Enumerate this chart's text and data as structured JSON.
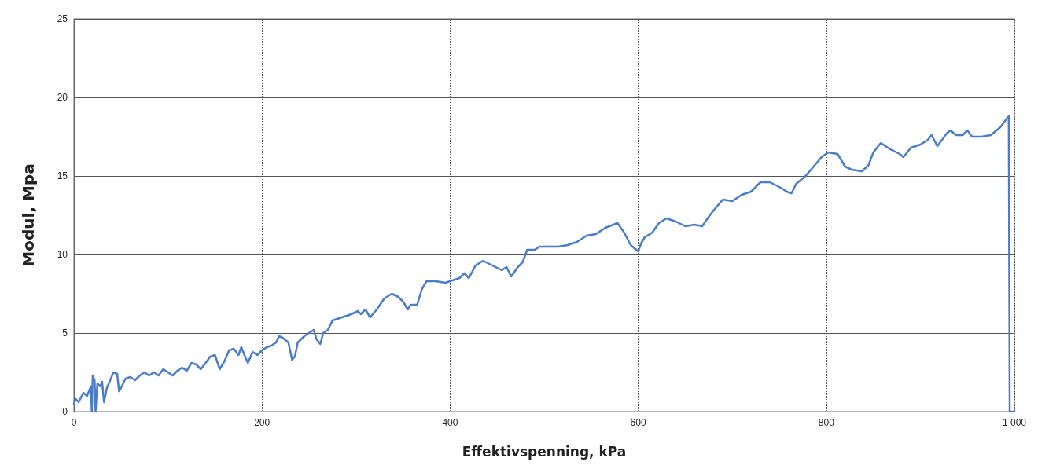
{
  "chart_data": {
    "type": "line",
    "xlabel": "Effektivspenning, kPa",
    "ylabel": "Modul, Mpa",
    "xlim": [
      0,
      1000
    ],
    "xticks": [
      0,
      200,
      400,
      600,
      800,
      {
        "value": 1000,
        "label": "1 000"
      }
    ],
    "ylim": [
      0,
      25
    ],
    "yticks": [
      0,
      5,
      10,
      15,
      20,
      25
    ],
    "grid": true,
    "marker": "none",
    "line_style": "solid",
    "series": [
      {
        "color": "#4a7cc8",
        "x": [
          0,
          2,
          5,
          10,
          14,
          18,
          19,
          20,
          22,
          23,
          25,
          28,
          30,
          32,
          35,
          40,
          42,
          46,
          48,
          50,
          55,
          60,
          65,
          70,
          75,
          80,
          85,
          90,
          95,
          100,
          105,
          110,
          115,
          120,
          125,
          130,
          135,
          140,
          145,
          150,
          155,
          160,
          165,
          170,
          175,
          178,
          182,
          185,
          190,
          195,
          200,
          205,
          210,
          215,
          218,
          222,
          228,
          232,
          235,
          238,
          245,
          250,
          255,
          258,
          262,
          265,
          270,
          275,
          285,
          295,
          302,
          305,
          310,
          315,
          322,
          330,
          338,
          345,
          350,
          355,
          358,
          365,
          370,
          375,
          385,
          395,
          400,
          410,
          415,
          420,
          427,
          435,
          445,
          455,
          460,
          465,
          472,
          477,
          482,
          490,
          495,
          505,
          515,
          525,
          535,
          545,
          555,
          565,
          578,
          585,
          592,
          600,
          603,
          607,
          615,
          622,
          630,
          640,
          650,
          660,
          668,
          675,
          680,
          690,
          700,
          710,
          720,
          730,
          740,
          750,
          758,
          763,
          768,
          778,
          788,
          795,
          802,
          812,
          820,
          827,
          838,
          845,
          850,
          858,
          868,
          878,
          882,
          890,
          900,
          908,
          912,
          918,
          928,
          932,
          938,
          945,
          950,
          955,
          965,
          975,
          985,
          990,
          994,
          995,
          1000
        ],
        "values": [
          0.5,
          0.8,
          0.6,
          1.2,
          1.0,
          1.6,
          0,
          2.3,
          2.0,
          0,
          1.8,
          1.6,
          1.9,
          0.6,
          1.5,
          2.2,
          2.5,
          2.4,
          1.3,
          1.5,
          2.1,
          2.2,
          2.0,
          2.3,
          2.5,
          2.3,
          2.5,
          2.3,
          2.7,
          2.5,
          2.3,
          2.6,
          2.8,
          2.6,
          3.1,
          3.0,
          2.7,
          3.1,
          3.5,
          3.6,
          2.7,
          3.2,
          3.9,
          4.0,
          3.6,
          4.1,
          3.5,
          3.1,
          3.8,
          3.6,
          3.9,
          4.1,
          4.2,
          4.4,
          4.8,
          4.7,
          4.4,
          3.3,
          3.5,
          4.4,
          4.8,
          5.0,
          5.2,
          4.6,
          4.3,
          5.0,
          5.2,
          5.8,
          6.0,
          6.2,
          6.4,
          6.2,
          6.5,
          6.0,
          6.5,
          7.2,
          7.5,
          7.3,
          7.0,
          6.5,
          6.8,
          6.8,
          7.8,
          8.3,
          8.3,
          8.2,
          8.3,
          8.5,
          8.8,
          8.5,
          9.3,
          9.6,
          9.3,
          9.0,
          9.2,
          8.6,
          9.2,
          9.5,
          10.3,
          10.3,
          10.5,
          10.5,
          10.5,
          10.6,
          10.8,
          11.2,
          11.3,
          11.7,
          12.0,
          11.4,
          10.6,
          10.2,
          10.7,
          11.1,
          11.4,
          12.0,
          12.3,
          12.1,
          11.8,
          11.9,
          11.8,
          12.4,
          12.8,
          13.5,
          13.4,
          13.8,
          14.0,
          14.6,
          14.6,
          14.3,
          14.0,
          13.9,
          14.5,
          15.0,
          15.7,
          16.2,
          16.5,
          16.4,
          15.6,
          15.4,
          15.3,
          15.7,
          16.5,
          17.1,
          16.7,
          16.4,
          16.2,
          16.8,
          17.0,
          17.3,
          17.6,
          16.9,
          17.7,
          17.9,
          17.6,
          17.6,
          17.9,
          17.5,
          17.5,
          17.6,
          18.1,
          18.5,
          18.8,
          0,
          0
        ]
      }
    ]
  }
}
